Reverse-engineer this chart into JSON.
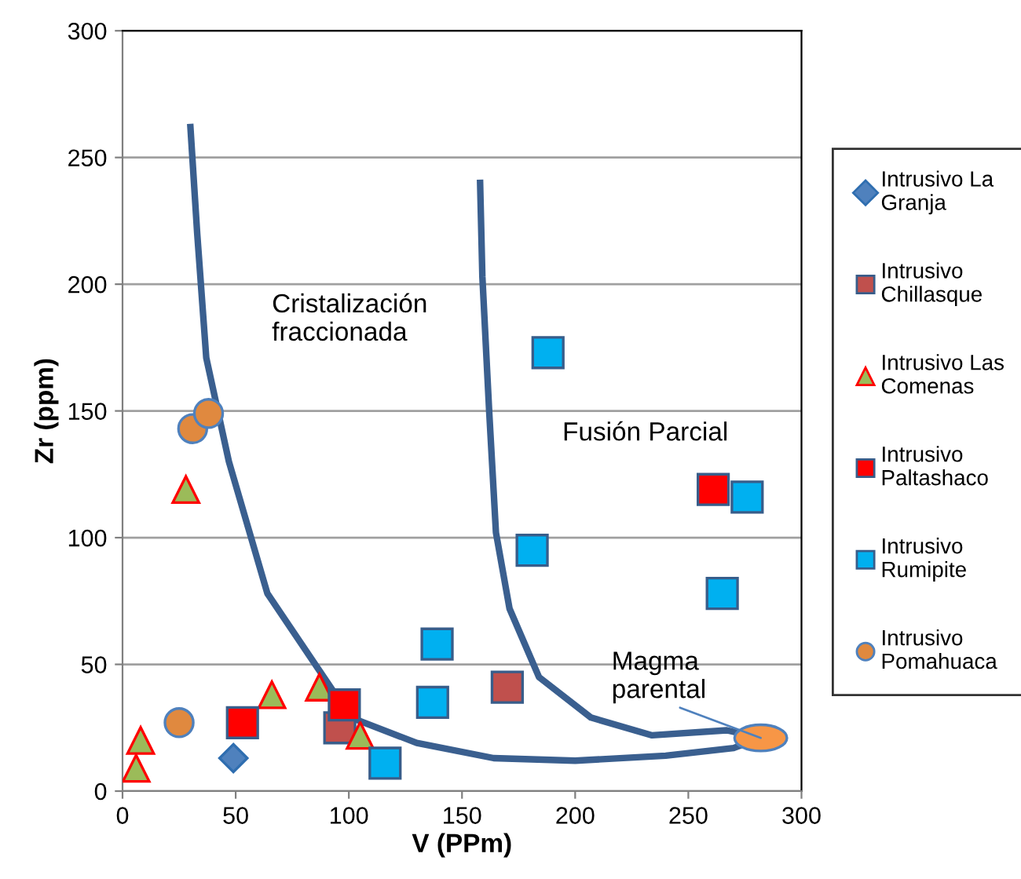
{
  "chart_data": {
    "type": "scatter",
    "xlabel": "V (PPm)",
    "ylabel": "Zr (ppm)",
    "xlim": [
      0,
      300
    ],
    "ylim": [
      0,
      300
    ],
    "xticks": [
      0,
      50,
      100,
      150,
      200,
      250,
      300
    ],
    "yticks": [
      0,
      50,
      100,
      150,
      200,
      250,
      300
    ],
    "grid": "y",
    "legend": "right",
    "series": [
      {
        "name": "Intrusivo La Granja",
        "color": "#4f81bd",
        "marker": "diamond",
        "x": [
          49
        ],
        "values": [
          13
        ]
      },
      {
        "name": "Intrusivo Chillasque",
        "color": "#c0504d",
        "marker": "square",
        "x": [
          96,
          170
        ],
        "values": [
          25,
          41
        ]
      },
      {
        "name": "Intrusivo Las Comenas",
        "color": "#9bbb59",
        "marker": "triangle",
        "x": [
          6,
          8,
          28,
          66,
          87,
          105
        ],
        "values": [
          9,
          20,
          119,
          38,
          41,
          22
        ]
      },
      {
        "name": "Intrusivo Paltashaco",
        "color": "#ff0000",
        "marker": "square",
        "x": [
          53,
          98,
          261
        ],
        "values": [
          27,
          34,
          119
        ]
      },
      {
        "name": "Intrusivo Rumipite",
        "color": "#00b0f0",
        "marker": "square",
        "x": [
          116,
          137,
          139,
          188,
          181,
          276,
          265
        ],
        "values": [
          11,
          35,
          58,
          173,
          95,
          116,
          78
        ]
      },
      {
        "name": "Intrusivo Pomahuaca",
        "color": "#e0893f",
        "marker": "circle",
        "x": [
          25,
          31,
          38
        ],
        "values": [
          27,
          143,
          149
        ]
      },
      {
        "type": "line",
        "color": "#3a5f8f",
        "x": [
          30,
          33,
          37,
          47,
          64,
          101,
          130,
          164,
          200,
          240,
          270,
          282
        ],
        "values": [
          262,
          220,
          171,
          130,
          78,
          29,
          19,
          13,
          12,
          14,
          17,
          21
        ]
      },
      {
        "type": "line",
        "color": "#3a5f8f",
        "x": [
          158,
          159,
          162,
          165,
          171,
          184,
          207,
          234,
          267,
          282
        ],
        "values": [
          240,
          203,
          150,
          102,
          72,
          45,
          29,
          22,
          24,
          21
        ]
      },
      {
        "color": "#f79646",
        "marker": "circle",
        "x": [
          282
        ],
        "values": [
          21
        ]
      }
    ],
    "annotations": [
      "Cristalización fraccionada",
      "Fusión Parcial",
      {
        "text": "Magma parental",
        "x": 282,
        "y": 21
      }
    ]
  }
}
